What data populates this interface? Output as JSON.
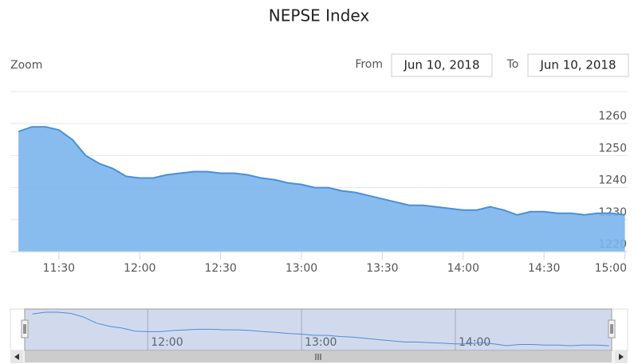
{
  "chart_data": {
    "type": "area",
    "title": "NEPSE Index",
    "zoom_label": "Zoom",
    "from_label": "From",
    "from_date": "Jun 10, 2018",
    "to_label": "To",
    "to_date": "Jun 10, 2018",
    "color": "#7cb5ec",
    "x": [
      "11:15",
      "11:20",
      "11:25",
      "11:30",
      "11:35",
      "11:40",
      "11:45",
      "11:50",
      "11:55",
      "12:00",
      "12:05",
      "12:10",
      "12:15",
      "12:20",
      "12:25",
      "12:30",
      "12:35",
      "12:40",
      "12:45",
      "12:50",
      "12:55",
      "13:00",
      "13:05",
      "13:10",
      "13:15",
      "13:20",
      "13:25",
      "13:30",
      "13:35",
      "13:40",
      "13:45",
      "13:50",
      "13:55",
      "14:00",
      "14:05",
      "14:10",
      "14:15",
      "14:20",
      "14:25",
      "14:30",
      "14:35",
      "14:40",
      "14:45",
      "14:50",
      "14:55",
      "15:00"
    ],
    "values": [
      1257.5,
      1259,
      1259,
      1258,
      1255,
      1250,
      1247.5,
      1246,
      1243.5,
      1243,
      1243,
      1244,
      1244.5,
      1245,
      1245,
      1244.5,
      1244.5,
      1244,
      1243,
      1242.5,
      1241.5,
      1241,
      1240,
      1240,
      1239,
      1238.5,
      1237.5,
      1236.5,
      1235.5,
      1234.5,
      1234.5,
      1234,
      1233.5,
      1233,
      1233,
      1234,
      1233,
      1231.5,
      1232.5,
      1232.5,
      1232,
      1232,
      1231.5,
      1232,
      1232,
      1231.5
    ],
    "xlim": [
      "11:12",
      "15:01"
    ],
    "xticks": [
      "11:30",
      "12:00",
      "12:30",
      "13:00",
      "13:30",
      "14:00",
      "14:30",
      "15:00"
    ],
    "ylim": [
      1220,
      1270
    ],
    "yticks": [
      1220,
      1230,
      1240,
      1250,
      1260
    ],
    "grid": true,
    "navigator_xticks": [
      "12:00",
      "13:00",
      "14:00"
    ]
  }
}
